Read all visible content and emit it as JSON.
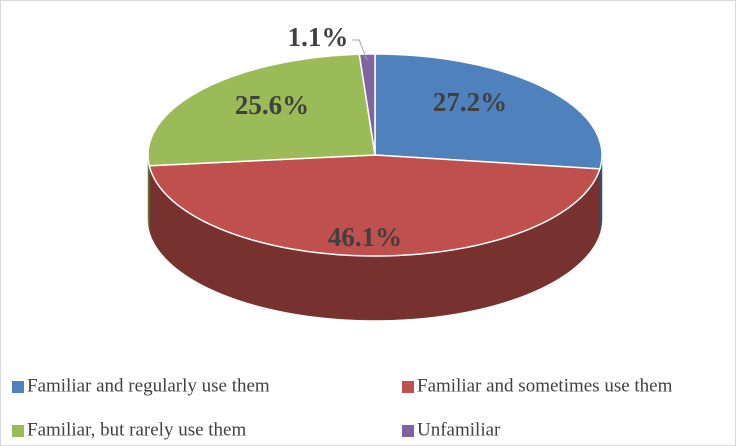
{
  "chart_data": {
    "type": "pie",
    "three_d": true,
    "categories": [
      "Familiar and regularly use them",
      "Familiar and sometimes use them",
      "Familiar, but rarely use them",
      "Unfamiliar"
    ],
    "values": [
      27.2,
      46.1,
      25.6,
      1.1
    ],
    "value_labels": [
      "27.2%",
      "46.1%",
      "25.6%",
      "1.1%"
    ],
    "colors": [
      "#4f81bd",
      "#c0504d",
      "#9bbb59",
      "#8064a2"
    ],
    "legend": "bottom"
  }
}
